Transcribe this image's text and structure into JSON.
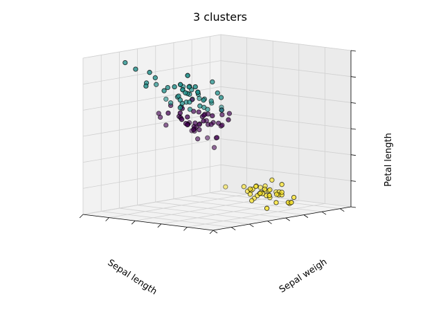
{
  "chart_data": {
    "type": "scatter",
    "title": "3 clusters",
    "xlabel": "Sepal length",
    "ylabel": "Sepal weigh",
    "zlabel": "Petal length",
    "projection": "3d",
    "tick_labels_shown": false,
    "grid": true,
    "colors": {
      "cluster_0": "#440154",
      "cluster_1": "#21918c",
      "cluster_2": "#fde725"
    },
    "series": [
      {
        "color_key": "cluster_2",
        "points": [
          [
            5.8,
            4.0,
            1.2
          ],
          [
            5.7,
            4.4,
            1.5
          ],
          [
            5.4,
            3.9,
            1.3
          ],
          [
            5.1,
            3.5,
            1.4
          ],
          [
            5.7,
            3.8,
            1.7
          ],
          [
            5.1,
            3.8,
            1.5
          ],
          [
            5.4,
            3.4,
            1.7
          ],
          [
            5.1,
            3.7,
            1.5
          ],
          [
            4.6,
            3.6,
            1.0
          ],
          [
            5.1,
            3.3,
            1.7
          ],
          [
            4.8,
            3.4,
            1.9
          ],
          [
            5.0,
            3.0,
            1.6
          ],
          [
            5.0,
            3.4,
            1.6
          ],
          [
            5.2,
            3.5,
            1.5
          ],
          [
            5.2,
            3.4,
            1.4
          ],
          [
            4.7,
            3.2,
            1.6
          ],
          [
            4.8,
            3.1,
            1.6
          ],
          [
            5.4,
            3.4,
            1.5
          ],
          [
            5.2,
            4.1,
            1.5
          ],
          [
            5.5,
            4.2,
            1.4
          ],
          [
            4.9,
            3.1,
            1.5
          ],
          [
            5.0,
            3.2,
            1.2
          ],
          [
            5.5,
            3.5,
            1.3
          ],
          [
            4.9,
            3.6,
            1.4
          ],
          [
            4.4,
            3.0,
            1.3
          ],
          [
            5.1,
            3.4,
            1.5
          ],
          [
            5.0,
            3.5,
            1.3
          ],
          [
            4.5,
            2.3,
            1.3
          ],
          [
            4.4,
            3.2,
            1.3
          ],
          [
            5.0,
            3.5,
            1.6
          ],
          [
            5.1,
            3.8,
            1.9
          ],
          [
            4.8,
            3.0,
            1.4
          ],
          [
            5.1,
            3.8,
            1.6
          ],
          [
            4.6,
            3.2,
            1.4
          ],
          [
            5.3,
            3.7,
            1.5
          ],
          [
            5.0,
            3.3,
            1.4
          ],
          [
            4.3,
            3.0,
            1.1
          ],
          [
            4.4,
            2.9,
            1.4
          ],
          [
            4.6,
            3.4,
            1.4
          ],
          [
            4.9,
            3.0,
            1.4
          ]
        ]
      },
      {
        "color_key": "cluster_0",
        "points": [
          [
            7.0,
            3.2,
            4.7
          ],
          [
            6.4,
            3.2,
            4.5
          ],
          [
            6.9,
            3.1,
            4.9
          ],
          [
            5.5,
            2.3,
            4.0
          ],
          [
            6.5,
            2.8,
            4.6
          ],
          [
            5.7,
            2.8,
            4.5
          ],
          [
            6.3,
            3.3,
            4.7
          ],
          [
            4.9,
            2.4,
            3.3
          ],
          [
            6.6,
            2.9,
            4.6
          ],
          [
            5.2,
            2.7,
            3.9
          ],
          [
            5.0,
            2.0,
            3.5
          ],
          [
            5.9,
            3.0,
            4.2
          ],
          [
            6.0,
            2.2,
            4.0
          ],
          [
            6.1,
            2.9,
            4.7
          ],
          [
            5.6,
            2.9,
            3.6
          ],
          [
            6.7,
            3.1,
            4.4
          ],
          [
            5.6,
            3.0,
            4.5
          ],
          [
            5.8,
            2.7,
            4.1
          ],
          [
            6.2,
            2.2,
            4.5
          ],
          [
            5.6,
            2.5,
            3.9
          ],
          [
            5.9,
            3.2,
            4.8
          ],
          [
            6.1,
            2.8,
            4.0
          ],
          [
            6.3,
            2.5,
            4.9
          ],
          [
            6.1,
            2.8,
            4.7
          ],
          [
            6.4,
            2.9,
            4.3
          ],
          [
            6.6,
            3.0,
            4.4
          ],
          [
            6.8,
            2.8,
            4.8
          ],
          [
            6.7,
            3.0,
            5.0
          ],
          [
            6.0,
            2.9,
            4.5
          ],
          [
            5.7,
            2.6,
            3.5
          ],
          [
            5.5,
            2.4,
            3.8
          ],
          [
            5.5,
            2.4,
            3.7
          ],
          [
            5.8,
            2.7,
            3.9
          ],
          [
            6.0,
            2.7,
            5.1
          ],
          [
            5.4,
            3.0,
            4.5
          ],
          [
            6.0,
            3.4,
            4.5
          ],
          [
            6.7,
            3.1,
            4.7
          ],
          [
            6.3,
            2.3,
            4.4
          ],
          [
            5.6,
            3.0,
            4.1
          ],
          [
            5.5,
            2.5,
            4.0
          ],
          [
            5.5,
            2.6,
            4.4
          ],
          [
            6.1,
            3.0,
            4.6
          ],
          [
            5.8,
            2.6,
            4.0
          ],
          [
            5.0,
            2.3,
            3.3
          ],
          [
            5.6,
            2.7,
            4.2
          ],
          [
            5.7,
            3.0,
            4.2
          ],
          [
            5.7,
            2.9,
            4.2
          ],
          [
            6.2,
            2.9,
            4.3
          ],
          [
            5.1,
            2.5,
            3.0
          ],
          [
            5.7,
            2.8,
            4.1
          ]
        ]
      },
      {
        "color_key": "cluster_1",
        "points": [
          [
            6.3,
            3.3,
            6.0
          ],
          [
            5.8,
            2.7,
            5.1
          ],
          [
            7.1,
            3.0,
            5.9
          ],
          [
            6.3,
            2.9,
            5.6
          ],
          [
            6.5,
            3.0,
            5.8
          ],
          [
            7.6,
            3.0,
            6.6
          ],
          [
            4.9,
            2.5,
            4.5
          ],
          [
            7.3,
            2.9,
            6.3
          ],
          [
            6.7,
            2.5,
            5.8
          ],
          [
            7.2,
            3.6,
            6.1
          ],
          [
            6.5,
            3.2,
            5.1
          ],
          [
            6.4,
            2.7,
            5.3
          ],
          [
            6.8,
            3.0,
            5.5
          ],
          [
            5.7,
            2.5,
            5.0
          ],
          [
            5.8,
            2.8,
            5.1
          ],
          [
            6.4,
            3.2,
            5.3
          ],
          [
            6.5,
            3.0,
            5.5
          ],
          [
            7.7,
            3.8,
            6.7
          ],
          [
            7.7,
            2.6,
            6.9
          ],
          [
            6.0,
            2.2,
            5.0
          ],
          [
            6.9,
            3.2,
            5.7
          ],
          [
            5.6,
            2.8,
            4.9
          ],
          [
            7.7,
            2.8,
            6.7
          ],
          [
            6.3,
            2.7,
            4.9
          ],
          [
            6.7,
            3.3,
            5.7
          ],
          [
            7.2,
            3.2,
            6.0
          ],
          [
            6.2,
            2.8,
            4.8
          ],
          [
            6.1,
            3.0,
            4.9
          ],
          [
            6.4,
            2.8,
            5.6
          ],
          [
            7.2,
            3.0,
            5.8
          ],
          [
            7.4,
            2.8,
            6.1
          ],
          [
            7.9,
            3.8,
            6.4
          ],
          [
            6.4,
            2.8,
            5.6
          ],
          [
            6.3,
            2.8,
            5.1
          ],
          [
            6.1,
            2.6,
            5.6
          ],
          [
            7.7,
            3.0,
            6.1
          ],
          [
            6.3,
            3.4,
            5.6
          ],
          [
            6.4,
            3.1,
            5.5
          ],
          [
            6.0,
            3.0,
            4.8
          ],
          [
            6.9,
            3.1,
            5.4
          ],
          [
            6.7,
            3.1,
            5.6
          ],
          [
            6.9,
            3.1,
            5.1
          ],
          [
            6.8,
            3.2,
            5.9
          ],
          [
            6.7,
            3.3,
            5.7
          ],
          [
            6.7,
            3.0,
            5.2
          ],
          [
            6.3,
            2.5,
            5.0
          ],
          [
            6.5,
            3.0,
            5.2
          ],
          [
            6.2,
            3.4,
            5.4
          ],
          [
            5.9,
            3.0,
            5.1
          ],
          [
            5.9,
            3.2,
            4.8
          ]
        ]
      }
    ]
  }
}
